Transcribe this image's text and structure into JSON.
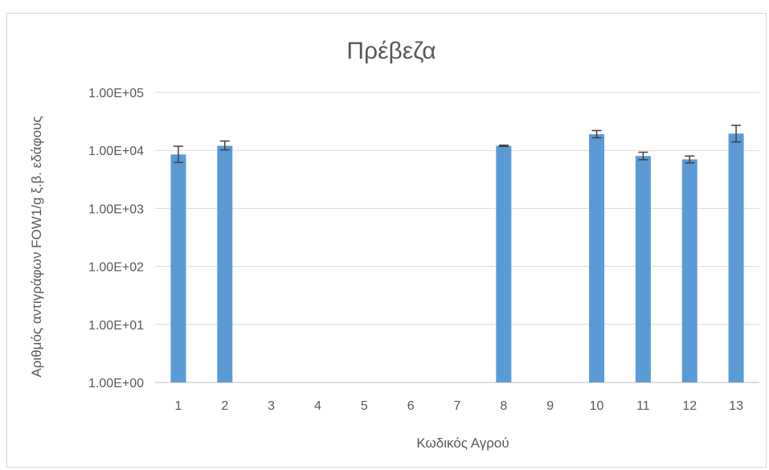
{
  "chart_data": {
    "type": "bar",
    "title": "Πρέβεζα",
    "xlabel": "Κωδικός Αγρού",
    "ylabel": "Αριθμός αντιγράφων FOW1/g ξ.β. εδάφους",
    "yscale": "log",
    "ylim": [
      1,
      100000
    ],
    "yticks": [
      1,
      10,
      100,
      1000,
      10000,
      100000
    ],
    "ytick_labels": [
      "1.00E+00",
      "1.00E+01",
      "1.00E+02",
      "1.00E+03",
      "1.00E+04",
      "1.00E+05"
    ],
    "categories": [
      "1",
      "2",
      "3",
      "4",
      "5",
      "6",
      "7",
      "8",
      "9",
      "10",
      "11",
      "12",
      "13"
    ],
    "values": [
      8500,
      12000,
      null,
      null,
      null,
      null,
      null,
      12000,
      null,
      19000,
      8000,
      7000,
      19500
    ],
    "error_high": [
      11800,
      14500,
      null,
      null,
      null,
      null,
      null,
      12300,
      null,
      22000,
      9300,
      8000,
      27000
    ],
    "error_low": [
      6200,
      10200,
      null,
      null,
      null,
      null,
      null,
      11700,
      null,
      16500,
      6900,
      6100,
      14000
    ],
    "grid": true,
    "legend": "none",
    "bar_color": "#5b9bd5"
  }
}
